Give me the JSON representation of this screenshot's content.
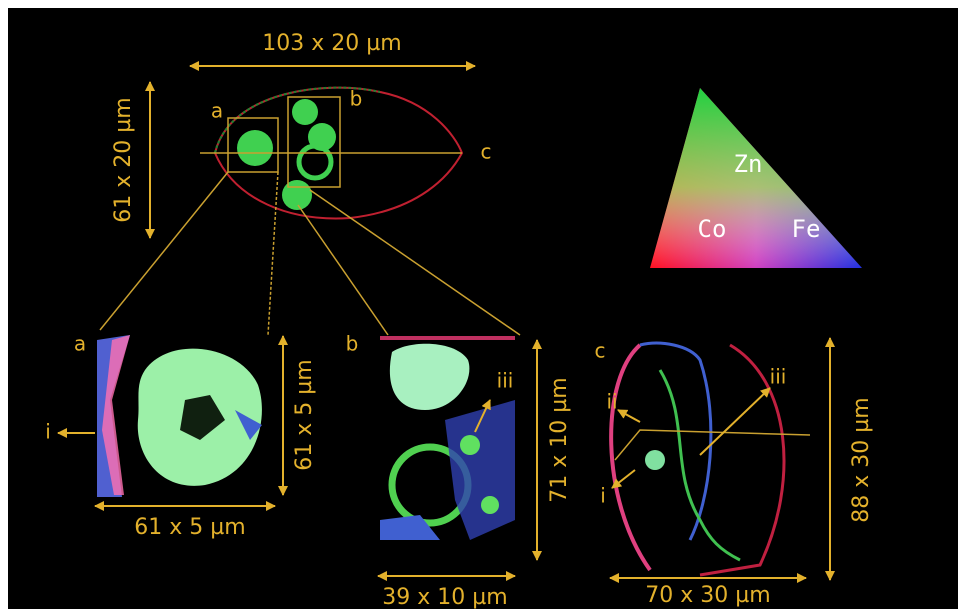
{
  "overview": {
    "width_label": "103 x 20 µm",
    "height_label": "61 x 20 µm",
    "region_labels": [
      "a",
      "b",
      "c"
    ]
  },
  "legend": {
    "elements": [
      "Zn",
      "Co",
      "Fe"
    ]
  },
  "panels": [
    {
      "label": "a",
      "height_label": "61 x 5 µm",
      "width_label": "61 x 5 µm",
      "markers": [
        "i"
      ]
    },
    {
      "label": "b",
      "height_label": "71 x 10 µm",
      "width_label": "39 x 10 µm",
      "markers": [
        "iii"
      ]
    },
    {
      "label": "c",
      "height_label": "88 x 30 µm",
      "width_label": "70 x 30 µm",
      "markers": [
        "ii",
        "iii",
        "i"
      ]
    }
  ]
}
